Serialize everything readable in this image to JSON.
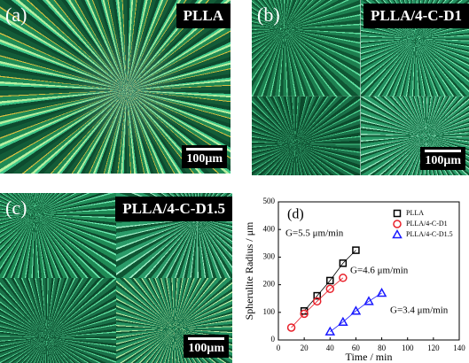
{
  "panels": [
    {
      "label": "(a)",
      "title": "PLLA",
      "scale": "100μm"
    },
    {
      "label": "(b)",
      "title": "PLLA/4-C-D1",
      "scale": "100μm"
    },
    {
      "label": "(c)",
      "title": "PLLA/4-C-D1.5",
      "scale": "100μm"
    }
  ],
  "chart_data": {
    "type": "scatter",
    "label": "(d)",
    "x_label": "Time / min",
    "y_label": "Spherulite Radius / μm",
    "xlim": [
      0,
      140
    ],
    "xticks": [
      0,
      20,
      40,
      60,
      80,
      100,
      120,
      140
    ],
    "ylim": [
      0,
      500
    ],
    "yticks": [
      0,
      100,
      200,
      300,
      400,
      500
    ],
    "series": [
      {
        "name": "PLLA",
        "color": "#000000",
        "marker": "square",
        "x": [
          20,
          30,
          40,
          50,
          60
        ],
        "values": [
          105,
          160,
          215,
          278,
          325
        ]
      },
      {
        "name": "PLLA/4-C-D1",
        "color": "#e8202a",
        "marker": "circle",
        "x": [
          10,
          20,
          30,
          40,
          50
        ],
        "values": [
          45,
          95,
          140,
          185,
          225
        ]
      },
      {
        "name": "PLLA/4-C-D1.5",
        "color": "#1a1aff",
        "marker": "triangle",
        "x": [
          40,
          50,
          60,
          70,
          80
        ],
        "values": [
          30,
          65,
          105,
          140,
          170
        ]
      }
    ],
    "annotations": [
      "G=5.5 μm/min",
      "G=4.6 μm/min",
      "G=3.4 μm/min"
    ]
  }
}
